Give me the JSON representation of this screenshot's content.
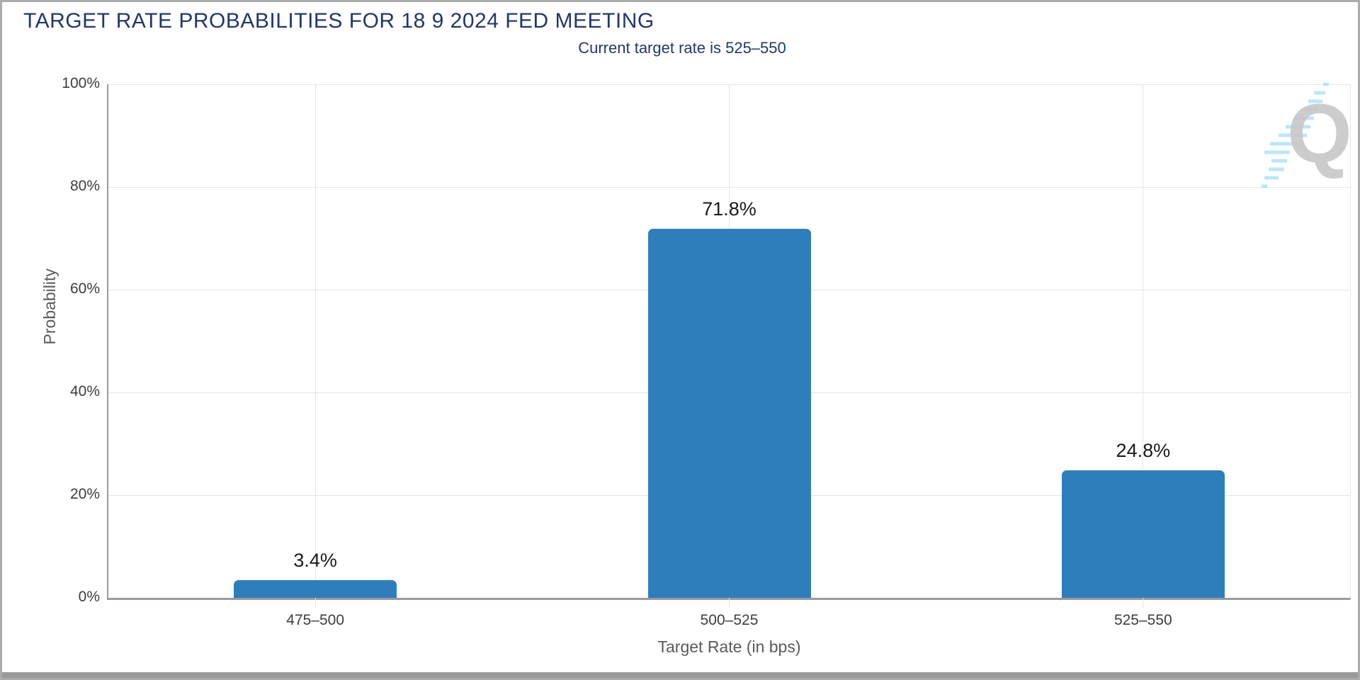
{
  "page": {
    "watermark_letter": "Q"
  },
  "chart_data": {
    "type": "bar",
    "title": "TARGET RATE PROBABILITIES FOR 18 9 2024 FED MEETING",
    "subtitle": "Current target rate is 525–550",
    "categories": [
      "475–500",
      "500–525",
      "525–550"
    ],
    "values": [
      3.4,
      71.8,
      24.8
    ],
    "value_labels": [
      "3.4%",
      "71.8%",
      "24.8%"
    ],
    "xlabel": "Target Rate (in bps)",
    "ylabel": "Probability",
    "ylim": [
      0,
      100
    ],
    "yticks": [
      {
        "value": 0,
        "label": "0%"
      },
      {
        "value": 20,
        "label": "20%"
      },
      {
        "value": 40,
        "label": "40%"
      },
      {
        "value": 60,
        "label": "60%"
      },
      {
        "value": 80,
        "label": "80%"
      },
      {
        "value": 100,
        "label": "100%"
      }
    ],
    "grid": true,
    "legend_position": "none"
  },
  "colors": {
    "bar": "#2d7fbc",
    "title_text": "#22386b",
    "axis_text": "#3d3d3d",
    "axis_title_text": "#5a5a5a",
    "gridline": "#e4e4e4",
    "axis_line": "#9a9a9a",
    "watermark_gray": "#b5b5b5",
    "watermark_blue": "#a3dff8",
    "scrollbar": "#9a9a9a"
  }
}
